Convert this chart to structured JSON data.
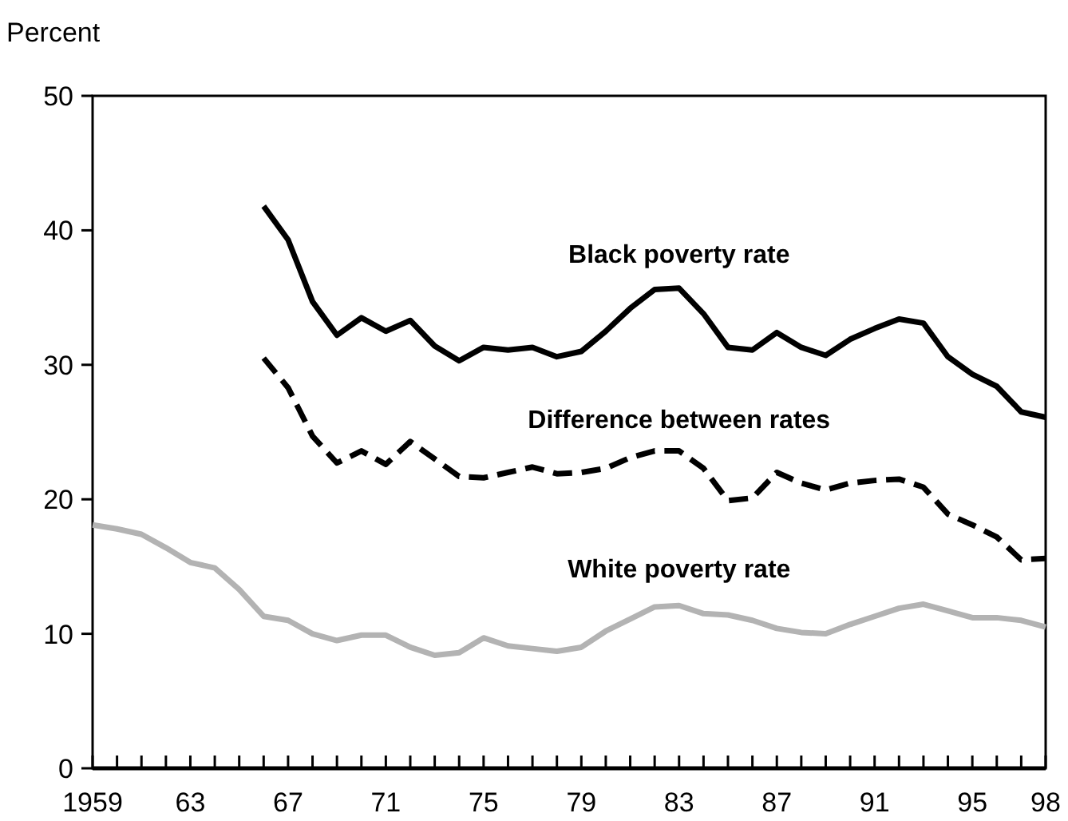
{
  "chart_data": {
    "type": "line",
    "ylabel": "Percent",
    "xlim": [
      1959,
      1998
    ],
    "ylim": [
      0,
      50
    ],
    "yticks": [
      0,
      10,
      20,
      30,
      40,
      50
    ],
    "xticks": [
      {
        "value": 1959,
        "label": "1959"
      },
      {
        "value": 1960,
        "label": null
      },
      {
        "value": 1961,
        "label": null
      },
      {
        "value": 1962,
        "label": null
      },
      {
        "value": 1963,
        "label": "63"
      },
      {
        "value": 1964,
        "label": null
      },
      {
        "value": 1965,
        "label": null
      },
      {
        "value": 1966,
        "label": null
      },
      {
        "value": 1967,
        "label": "67"
      },
      {
        "value": 1968,
        "label": null
      },
      {
        "value": 1969,
        "label": null
      },
      {
        "value": 1970,
        "label": null
      },
      {
        "value": 1971,
        "label": "71"
      },
      {
        "value": 1972,
        "label": null
      },
      {
        "value": 1973,
        "label": null
      },
      {
        "value": 1974,
        "label": null
      },
      {
        "value": 1975,
        "label": "75"
      },
      {
        "value": 1976,
        "label": null
      },
      {
        "value": 1977,
        "label": null
      },
      {
        "value": 1978,
        "label": null
      },
      {
        "value": 1979,
        "label": "79"
      },
      {
        "value": 1980,
        "label": null
      },
      {
        "value": 1981,
        "label": null
      },
      {
        "value": 1982,
        "label": null
      },
      {
        "value": 1983,
        "label": "83"
      },
      {
        "value": 1984,
        "label": null
      },
      {
        "value": 1985,
        "label": null
      },
      {
        "value": 1986,
        "label": null
      },
      {
        "value": 1987,
        "label": "87"
      },
      {
        "value": 1988,
        "label": null
      },
      {
        "value": 1989,
        "label": null
      },
      {
        "value": 1990,
        "label": null
      },
      {
        "value": 1991,
        "label": "91"
      },
      {
        "value": 1992,
        "label": null
      },
      {
        "value": 1993,
        "label": null
      },
      {
        "value": 1994,
        "label": null
      },
      {
        "value": 1995,
        "label": "95"
      },
      {
        "value": 1996,
        "label": null
      },
      {
        "value": 1997,
        "label": null
      },
      {
        "value": 1998,
        "label": "98"
      }
    ],
    "grid": false,
    "marker": "none",
    "series": [
      {
        "name": "Black poverty rate",
        "color": "#000000",
        "line_style": "solid",
        "x": [
          1966,
          1967,
          1968,
          1969,
          1970,
          1971,
          1972,
          1973,
          1974,
          1975,
          1976,
          1977,
          1978,
          1979,
          1980,
          1981,
          1982,
          1983,
          1984,
          1985,
          1986,
          1987,
          1988,
          1989,
          1990,
          1991,
          1992,
          1993,
          1994,
          1995,
          1996,
          1997,
          1998
        ],
        "values": [
          41.8,
          39.3,
          34.7,
          32.2,
          33.5,
          32.5,
          33.3,
          31.4,
          30.3,
          31.3,
          31.1,
          31.3,
          30.6,
          31.0,
          32.5,
          34.2,
          35.6,
          35.7,
          33.8,
          31.3,
          31.1,
          32.4,
          31.3,
          30.7,
          31.9,
          32.7,
          33.4,
          33.1,
          30.6,
          29.3,
          28.4,
          26.5,
          26.1
        ]
      },
      {
        "name": "Difference between rates",
        "color": "#000000",
        "line_style": "dashed",
        "x": [
          1966,
          1967,
          1968,
          1969,
          1970,
          1971,
          1972,
          1973,
          1974,
          1975,
          1976,
          1977,
          1978,
          1979,
          1980,
          1981,
          1982,
          1983,
          1984,
          1985,
          1986,
          1987,
          1988,
          1989,
          1990,
          1991,
          1992,
          1993,
          1994,
          1995,
          1996,
          1997,
          1998
        ],
        "values": [
          30.5,
          28.3,
          24.7,
          22.7,
          23.6,
          22.6,
          24.3,
          23.0,
          21.7,
          21.6,
          22.0,
          22.4,
          21.9,
          22.0,
          22.3,
          23.1,
          23.6,
          23.6,
          22.3,
          19.9,
          20.1,
          22.0,
          21.2,
          20.7,
          21.2,
          21.4,
          21.5,
          20.9,
          18.9,
          18.1,
          17.2,
          15.5,
          15.6
        ]
      },
      {
        "name": "White poverty rate",
        "color": "#b3b3b3",
        "line_style": "solid",
        "x": [
          1959,
          1960,
          1961,
          1962,
          1963,
          1964,
          1965,
          1966,
          1967,
          1968,
          1969,
          1970,
          1971,
          1972,
          1973,
          1974,
          1975,
          1976,
          1977,
          1978,
          1979,
          1980,
          1981,
          1982,
          1983,
          1984,
          1985,
          1986,
          1987,
          1988,
          1989,
          1990,
          1991,
          1992,
          1993,
          1994,
          1995,
          1996,
          1997,
          1998
        ],
        "values": [
          18.1,
          17.8,
          17.4,
          16.4,
          15.3,
          14.9,
          13.3,
          11.3,
          11.0,
          10.0,
          9.5,
          9.9,
          9.9,
          9.0,
          8.4,
          8.6,
          9.7,
          9.1,
          8.9,
          8.7,
          9.0,
          10.2,
          11.1,
          12.0,
          12.1,
          11.5,
          11.4,
          11.0,
          10.4,
          10.1,
          10.0,
          10.7,
          11.3,
          11.9,
          12.2,
          11.7,
          11.2,
          11.2,
          11.0,
          10.5
        ]
      }
    ]
  }
}
